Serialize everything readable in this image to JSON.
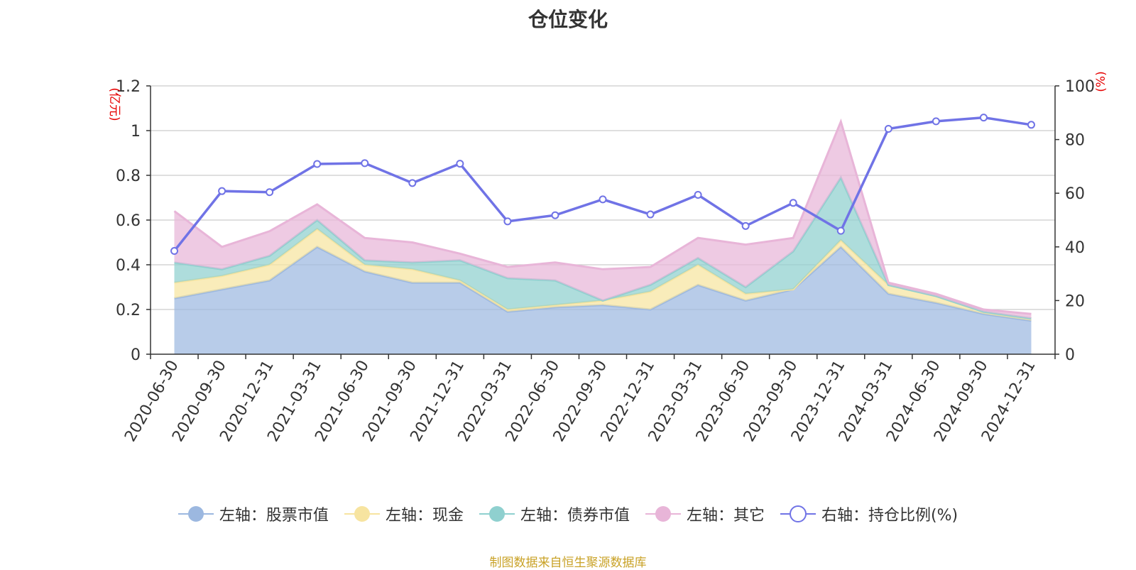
{
  "chart_data": {
    "type": "area",
    "title": "仓位变化",
    "categories": [
      "2020-06-30",
      "2020-09-30",
      "2020-12-31",
      "2021-03-31",
      "2021-06-30",
      "2021-09-30",
      "2021-12-31",
      "2022-03-31",
      "2022-06-30",
      "2022-09-30",
      "2022-12-31",
      "2023-03-31",
      "2023-06-30",
      "2023-09-30",
      "2023-12-31",
      "2024-03-31",
      "2024-06-30",
      "2024-09-30",
      "2024-12-31"
    ],
    "left_axis": {
      "label": "(亿元)",
      "ylim": [
        0,
        1.2
      ],
      "ticks": [
        "0",
        "0.2",
        "0.4",
        "0.6",
        "0.8",
        "1",
        "1.2"
      ]
    },
    "right_axis": {
      "label": "(%)",
      "ylim": [
        0,
        100
      ],
      "ticks": [
        "0",
        "20",
        "40",
        "60",
        "80",
        "100"
      ]
    },
    "series": [
      {
        "name": "左轴：股票市值",
        "axis": "left",
        "color": "#9cb8e0",
        "values": [
          0.25,
          0.29,
          0.33,
          0.48,
          0.37,
          0.32,
          0.32,
          0.19,
          0.21,
          0.22,
          0.2,
          0.31,
          0.24,
          0.29,
          0.48,
          0.27,
          0.23,
          0.18,
          0.15
        ]
      },
      {
        "name": "左轴：现金",
        "axis": "left",
        "color": "#f7e4a0",
        "values": [
          0.07,
          0.06,
          0.07,
          0.08,
          0.03,
          0.06,
          0.01,
          0.01,
          0.01,
          0.02,
          0.08,
          0.09,
          0.03,
          0.0,
          0.03,
          0.04,
          0.03,
          0.01,
          0.01
        ]
      },
      {
        "name": "左轴：债券市值",
        "axis": "left",
        "color": "#8fd0cf",
        "values": [
          0.09,
          0.03,
          0.04,
          0.04,
          0.02,
          0.03,
          0.09,
          0.14,
          0.11,
          0.0,
          0.03,
          0.03,
          0.03,
          0.17,
          0.28,
          0.0,
          0.0,
          0.0,
          0.0
        ]
      },
      {
        "name": "左轴：其它",
        "axis": "left",
        "color": "#e8b5d8",
        "values": [
          0.23,
          0.1,
          0.11,
          0.07,
          0.1,
          0.09,
          0.03,
          0.05,
          0.08,
          0.14,
          0.08,
          0.09,
          0.19,
          0.06,
          0.25,
          0.01,
          0.01,
          0.01,
          0.02
        ]
      },
      {
        "name": "右轴：持仓比例(%)",
        "axis": "right",
        "color": "#7073e6",
        "values": [
          38.5,
          60.8,
          60.4,
          70.9,
          71.2,
          63.8,
          71.0,
          49.5,
          51.8,
          57.7,
          52.1,
          59.4,
          47.8,
          56.4,
          46.0,
          84.0,
          86.8,
          88.2,
          85.5
        ]
      }
    ]
  },
  "source_note": "制图数据来自恒生聚源数据库"
}
